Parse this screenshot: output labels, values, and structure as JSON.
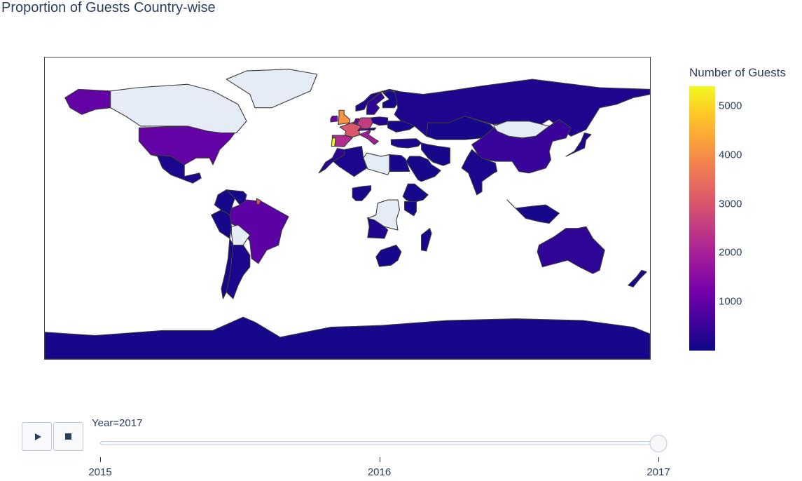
{
  "title": "Proportion of Guests Country-wise",
  "colorbar": {
    "title": "Number of Guests",
    "ticks": [
      1000,
      2000,
      3000,
      4000,
      5000
    ],
    "min": 0,
    "max": 5400,
    "colorscale": "Plasma",
    "no_data_color": "#e5ecf6"
  },
  "animation": {
    "play_icon": "play-icon",
    "stop_icon": "stop-icon",
    "current_label": "Year=2017",
    "steps": [
      "2015",
      "2016",
      "2017"
    ],
    "active_step": "2017"
  },
  "map": {
    "projection": "equirectangular",
    "countries": [
      {
        "name": "Portugal",
        "guests": 5400
      },
      {
        "name": "United Kingdom",
        "guests": 4000
      },
      {
        "name": "France",
        "guests": 3000
      },
      {
        "name": "Spain",
        "guests": 2200
      },
      {
        "name": "Germany",
        "guests": 2500
      },
      {
        "name": "Italy",
        "guests": 1900
      },
      {
        "name": "Ireland",
        "guests": 1100
      },
      {
        "name": "Belgium",
        "guests": 1500
      },
      {
        "name": "Netherlands",
        "guests": 1000
      },
      {
        "name": "Switzerland",
        "guests": 1200
      },
      {
        "name": "Austria",
        "guests": 300
      },
      {
        "name": "Poland",
        "guests": 250
      },
      {
        "name": "Sweden",
        "guests": 350
      },
      {
        "name": "Norway",
        "guests": 200
      },
      {
        "name": "Finland",
        "guests": 100
      },
      {
        "name": "Russia",
        "guests": 200
      },
      {
        "name": "Ukraine",
        "guests": 100
      },
      {
        "name": "Turkey",
        "guests": 150
      },
      {
        "name": "United States",
        "guests": 1000
      },
      {
        "name": "Canada",
        "guests": null
      },
      {
        "name": "Alaska",
        "guests": 1000
      },
      {
        "name": "Greenland",
        "guests": null
      },
      {
        "name": "Mexico",
        "guests": 150
      },
      {
        "name": "Brazil",
        "guests": 900
      },
      {
        "name": "Argentina",
        "guests": 150
      },
      {
        "name": "Chile",
        "guests": 100
      },
      {
        "name": "Peru",
        "guests": 100
      },
      {
        "name": "Colombia",
        "guests": 100
      },
      {
        "name": "Venezuela",
        "guests": 100
      },
      {
        "name": "Bolivia",
        "guests": null
      },
      {
        "name": "French Guiana",
        "guests": 3000
      },
      {
        "name": "China",
        "guests": 450
      },
      {
        "name": "Mongolia",
        "guests": null
      },
      {
        "name": "India",
        "guests": 150
      },
      {
        "name": "Kazakhstan",
        "guests": 100
      },
      {
        "name": "Iran",
        "guests": 100
      },
      {
        "name": "Saudi Arabia",
        "guests": 100
      },
      {
        "name": "Japan",
        "guests": 200
      },
      {
        "name": "Australia",
        "guests": 350
      },
      {
        "name": "New Zealand",
        "guests": 100
      },
      {
        "name": "Indonesia",
        "guests": 100
      },
      {
        "name": "Morocco",
        "guests": 300
      },
      {
        "name": "Algeria",
        "guests": 150
      },
      {
        "name": "Egypt",
        "guests": 100
      },
      {
        "name": "Libya",
        "guests": null
      },
      {
        "name": "Nigeria",
        "guests": 100
      },
      {
        "name": "Angola",
        "guests": 200
      },
      {
        "name": "South Africa",
        "guests": 100
      },
      {
        "name": "DR Congo",
        "guests": null
      },
      {
        "name": "Ethiopia",
        "guests": 100
      },
      {
        "name": "Kenya",
        "guests": 100
      },
      {
        "name": "Madagascar",
        "guests": 100
      },
      {
        "name": "Antarctica",
        "guests": 100
      }
    ]
  }
}
